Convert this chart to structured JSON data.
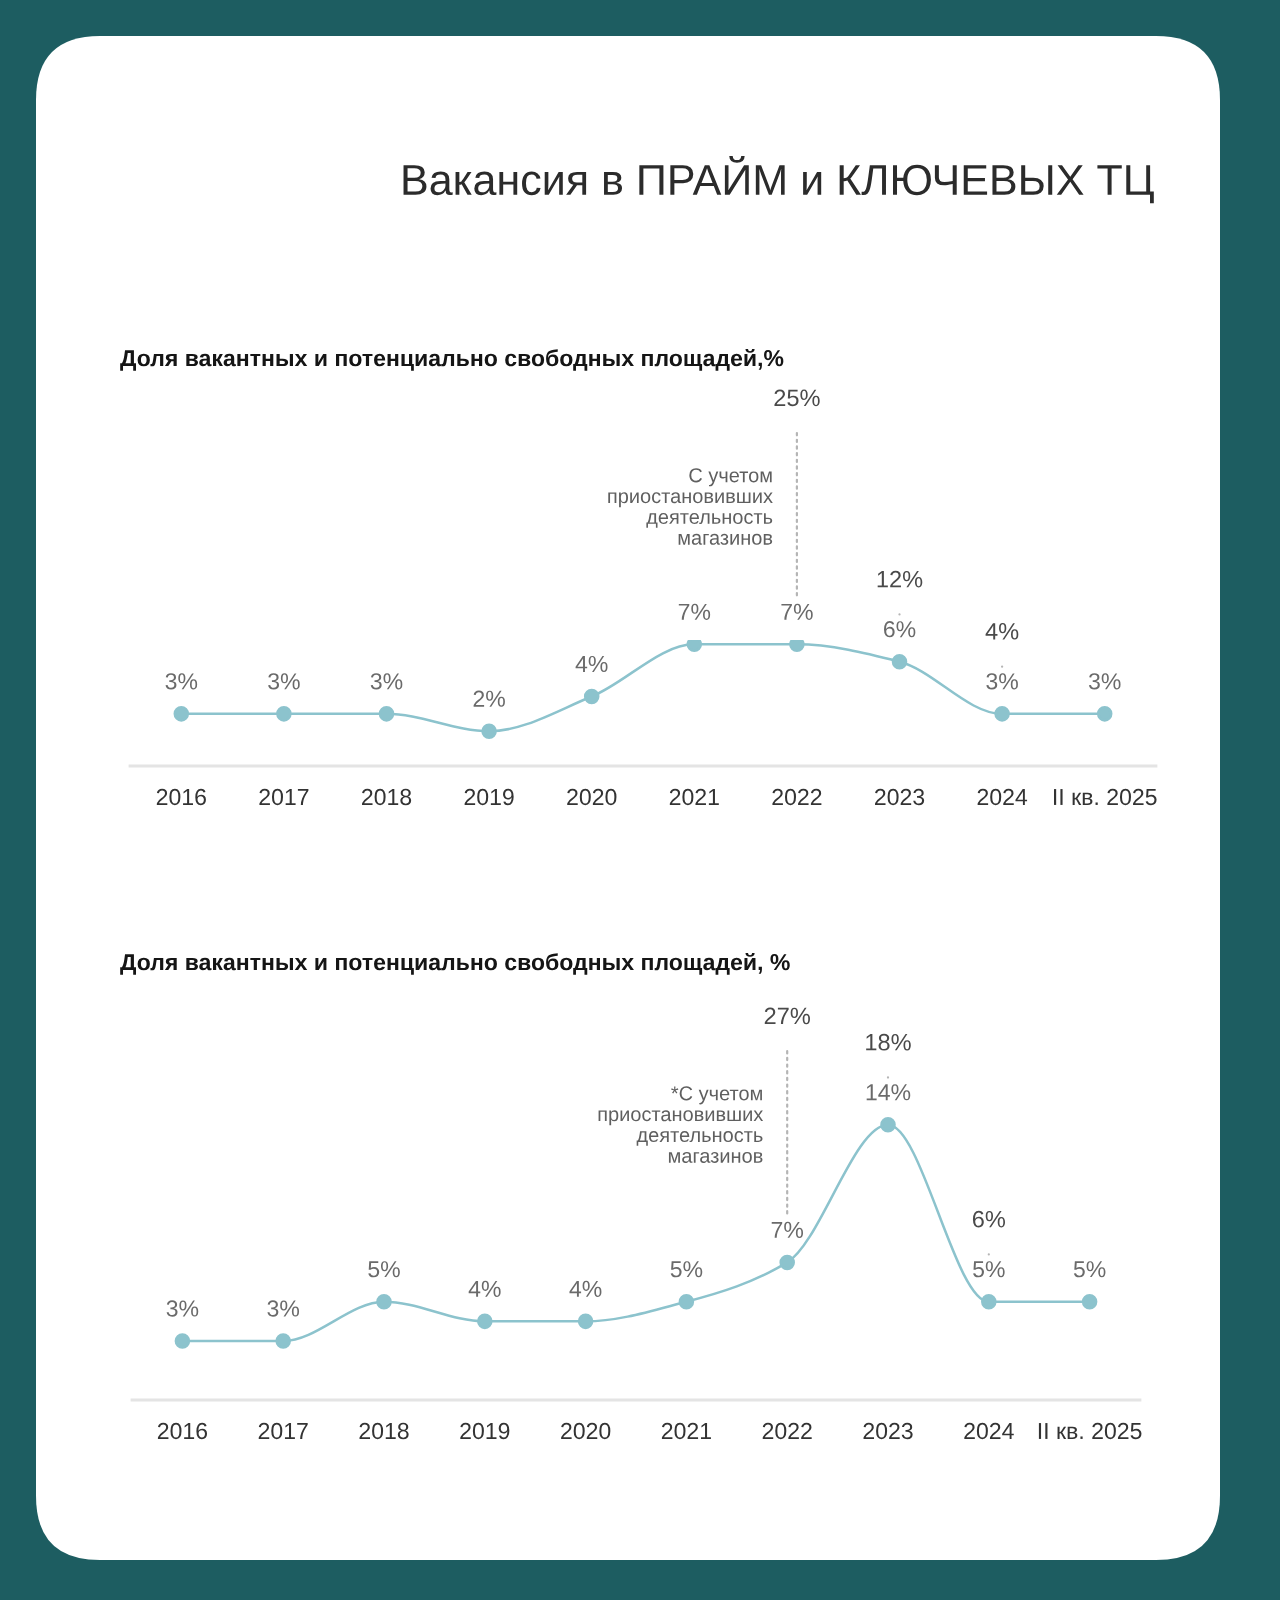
{
  "chart_data": [
    {
      "type": "line",
      "title": "Вакансия в ПРАЙМ и КЛЮЧЕВЫХ ТЦ",
      "subtitle": "Доля вакантных и потенциально свободных площадей,%",
      "categories": [
        "2016",
        "2017",
        "2018",
        "2019",
        "2020",
        "2021",
        "2022",
        "2023",
        "2024",
        "II кв. 2025"
      ],
      "series": [
        {
          "color": "#8cc3cd",
          "values": [
            3,
            3,
            3,
            2,
            4,
            7,
            7,
            6,
            3,
            3
          ],
          "value_labels": [
            "3%",
            "3%",
            "3%",
            "2%",
            "4%",
            "7%",
            "7%",
            "6%",
            "3%",
            "3%"
          ]
        }
      ],
      "marker": "circle",
      "line_style": "solid",
      "data_labels": true,
      "tick_labels": "x",
      "annotations": [
        {
          "text": "25%",
          "x": "2022"
        },
        {
          "text": "12%",
          "x": "2023"
        },
        {
          "text": "4%",
          "x": "2024"
        },
        "С учетом\nприостановивших\nдеятельность\nмагазинов"
      ]
    },
    {
      "type": "line",
      "title": "Доля вакантных и потенциально свободных площадей, %",
      "categories": [
        "2016",
        "2017",
        "2018",
        "2019",
        "2020",
        "2021",
        "2022",
        "2023",
        "2024",
        "II кв. 2025"
      ],
      "series": [
        {
          "color": "#8cc3cd",
          "values": [
            3,
            3,
            5,
            4,
            4,
            5,
            7,
            14,
            5,
            5
          ],
          "value_labels": [
            "3%",
            "3%",
            "5%",
            "4%",
            "4%",
            "5%",
            "7%",
            "14%",
            "5%",
            "5%"
          ]
        }
      ],
      "marker": "circle",
      "line_style": "solid",
      "data_labels": true,
      "tick_labels": "x",
      "annotations": [
        {
          "text": "27%",
          "x": "2022"
        },
        {
          "text": "18%",
          "x": "2023"
        },
        {
          "text": "6%",
          "x": "2024"
        },
        "*С учетом\nприостановивших\nдеятельность\nмагазинов"
      ]
    }
  ]
}
